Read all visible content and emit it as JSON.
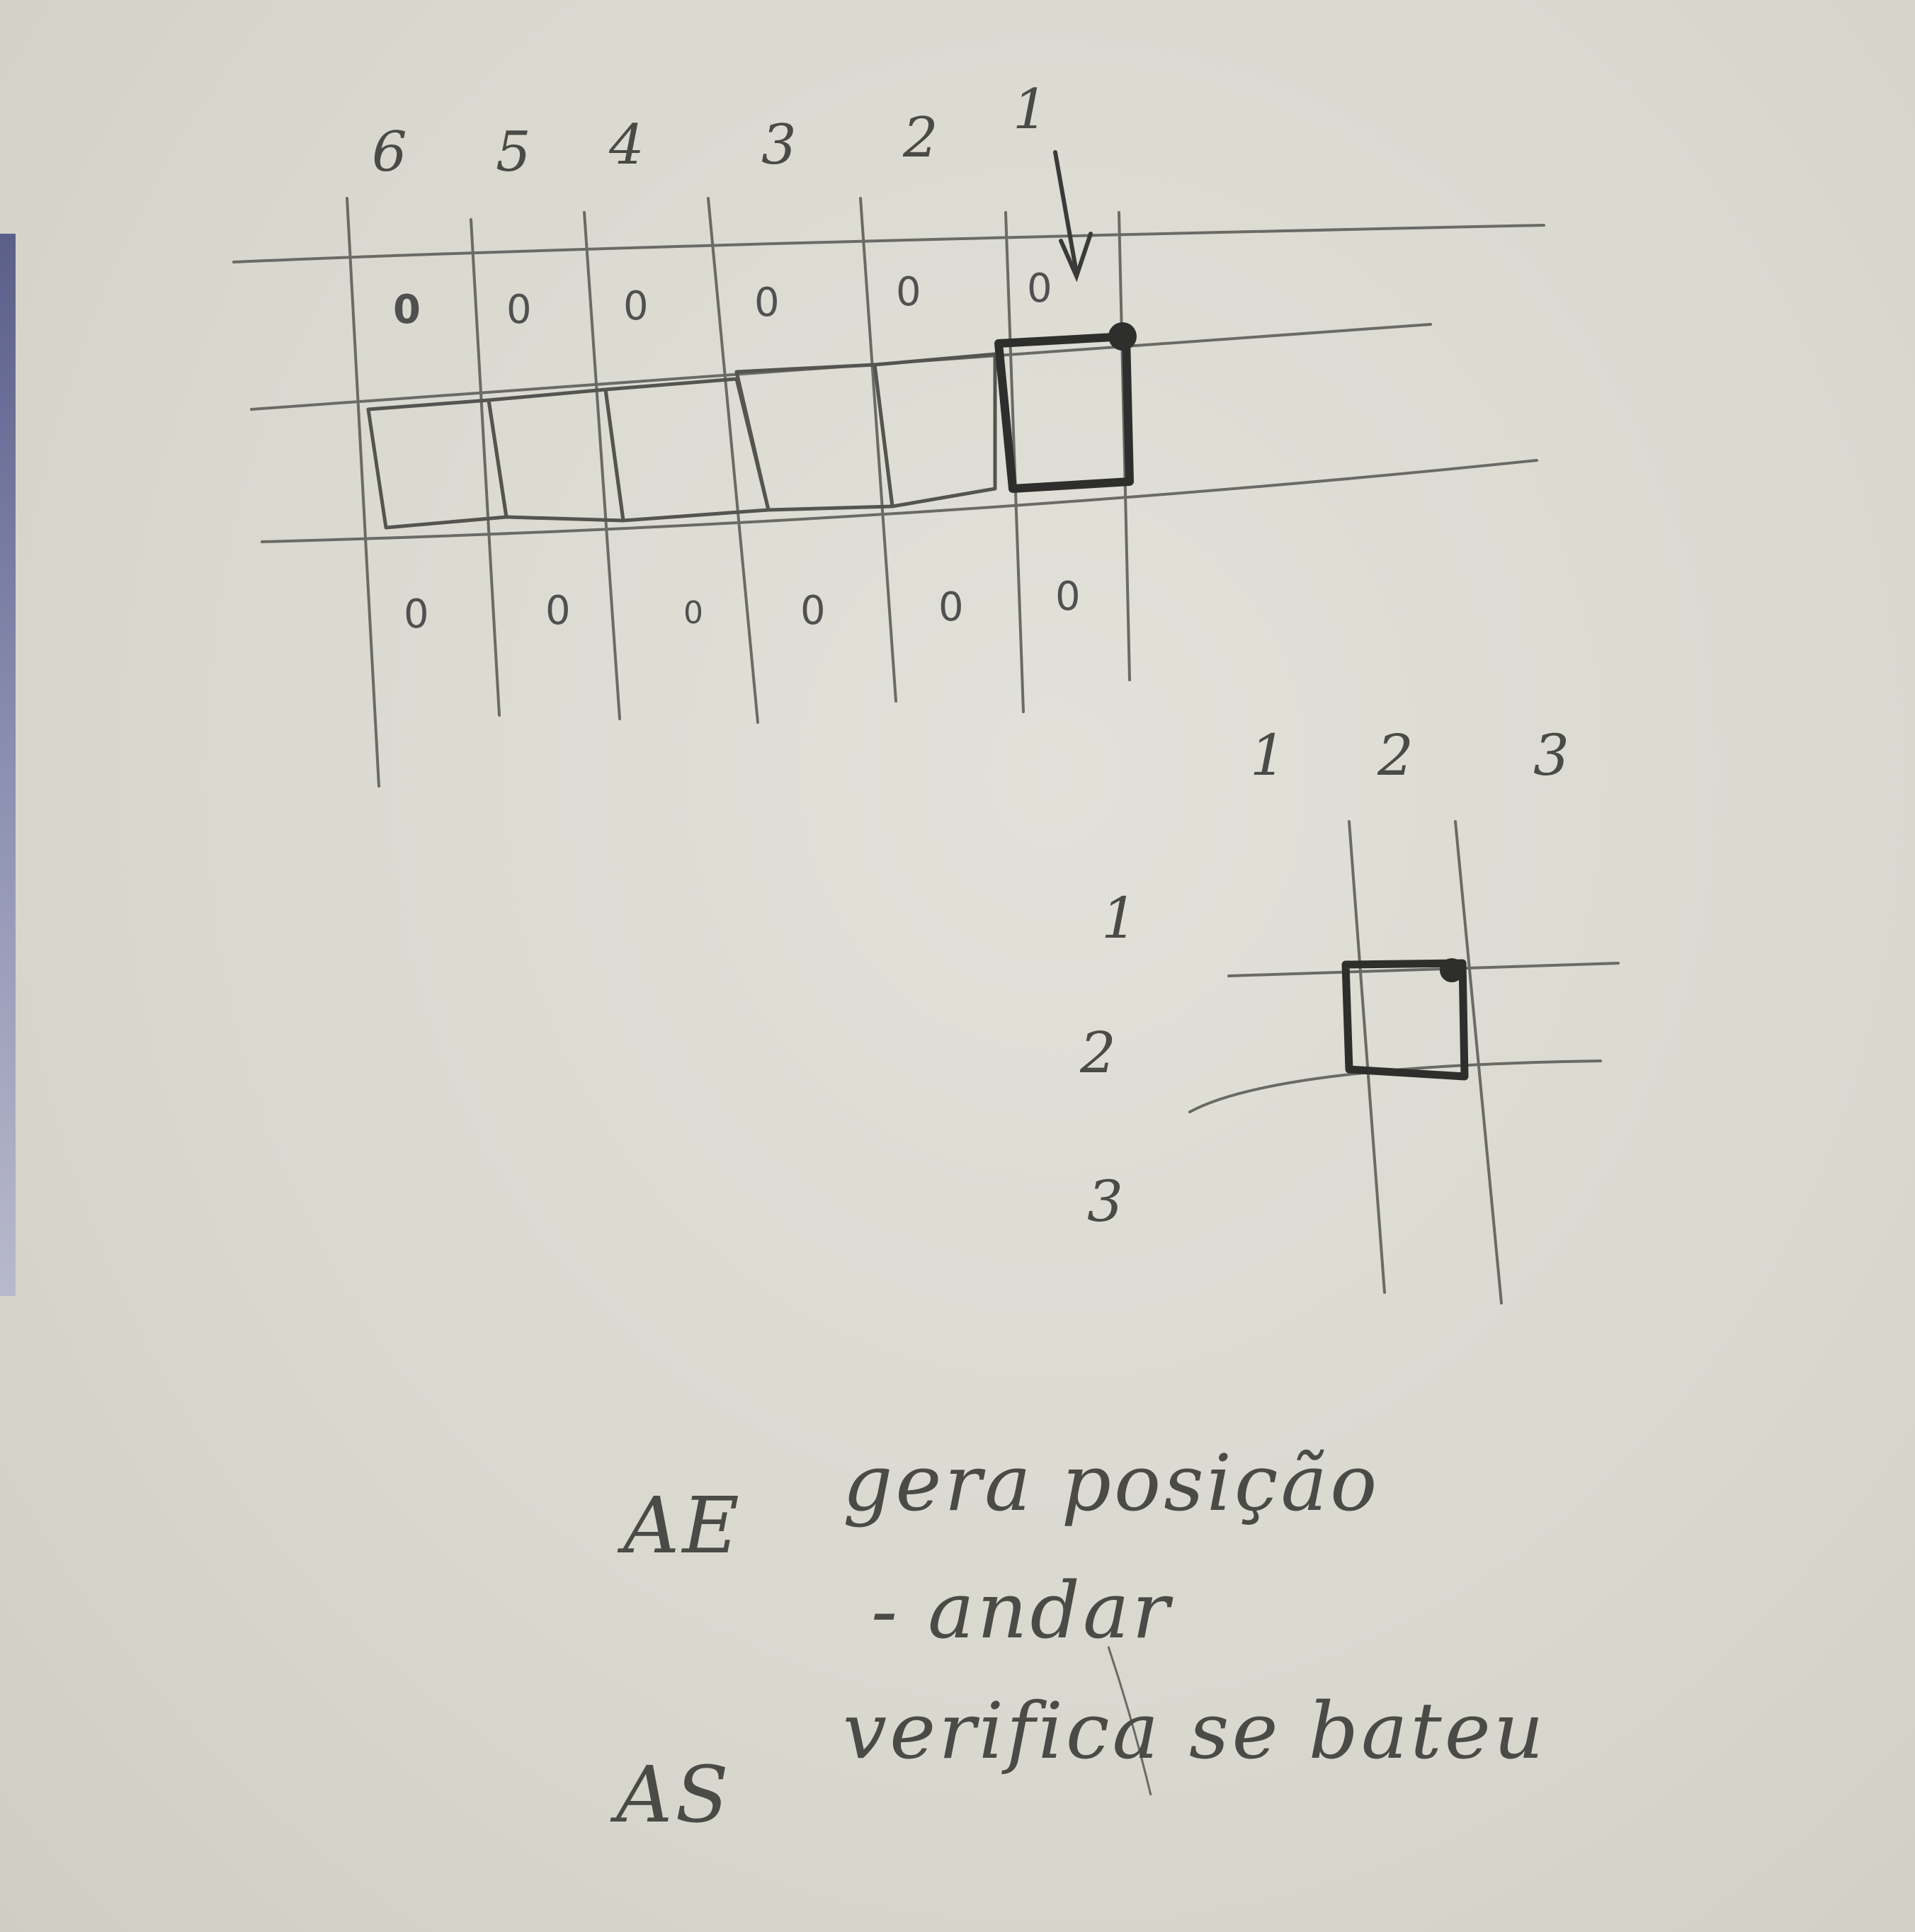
{
  "top_grid": {
    "column_labels": [
      "6",
      "5",
      "4",
      "3",
      "2",
      "1"
    ],
    "top_row_cells": [
      "0",
      "0",
      "0",
      "0",
      "0",
      "0"
    ],
    "bottom_row_cells": [
      "0",
      "0",
      "0",
      "0",
      "0",
      "0"
    ],
    "highlighted_column": "1",
    "icons": [
      "down-arrow-icon",
      "filled-dot-icon"
    ]
  },
  "small_grid": {
    "column_labels": [
      "1",
      "2",
      "3"
    ],
    "row_labels": [
      "1",
      "2",
      "3"
    ],
    "highlighted_cell": {
      "row": "2",
      "column": "2"
    }
  },
  "notes": [
    {
      "label": "AE",
      "lines": [
        "gera posição",
        "- andar"
      ]
    },
    {
      "label": "AS",
      "lines": [
        "verifica se bateu"
      ]
    }
  ],
  "colors": {
    "paper": "#dcdbd3",
    "pencil": "#4a4a46",
    "dark_pencil": "#2e2e2c"
  }
}
